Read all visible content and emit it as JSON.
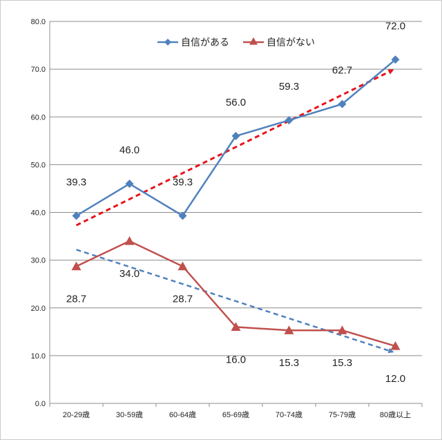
{
  "chart_data": {
    "type": "line",
    "title": "",
    "xlabel": "",
    "ylabel": "",
    "categories": [
      "20-29歳",
      "30-59歳",
      "60-64歳",
      "65-69歳",
      "70-74歳",
      "75-79歳",
      "80歳以上"
    ],
    "ylim": [
      0,
      80
    ],
    "y_ticks": [
      "0.0",
      "10.0",
      "20.0",
      "30.0",
      "40.0",
      "50.0",
      "60.0",
      "70.0",
      "80.0"
    ],
    "grid": true,
    "legend_position": "top-center",
    "series": [
      {
        "name": "自信がある",
        "color": "#4f81bd",
        "marker": "diamond",
        "values": [
          39.3,
          46.0,
          39.3,
          56.0,
          59.3,
          62.7,
          72.0
        ],
        "labels": [
          "39.3",
          "46.0",
          "39.3",
          "56.0",
          "59.3",
          "62.7",
          "72.0"
        ]
      },
      {
        "name": "自信がない",
        "color": "#c0504d",
        "marker": "triangle",
        "values": [
          28.7,
          34.0,
          28.7,
          16.0,
          15.3,
          15.3,
          12.0
        ],
        "labels": [
          "28.7",
          "34.0",
          "28.7",
          "16.0",
          "15.3",
          "15.3",
          "12.0"
        ]
      }
    ],
    "trendlines": [
      {
        "series": "自信がある",
        "color": "#e8141b",
        "style": "dashed",
        "arrow": true,
        "start": 37.3,
        "end": 69.8
      },
      {
        "series": "自信がない",
        "color": "#4f81bd",
        "style": "dashed",
        "arrow": true,
        "start": 32.2,
        "end": 10.8
      }
    ]
  }
}
